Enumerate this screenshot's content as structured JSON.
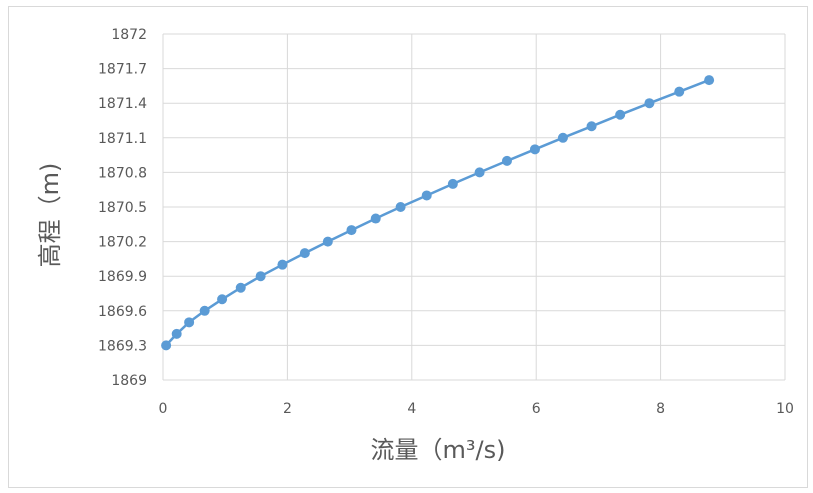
{
  "chart_data": {
    "type": "line",
    "title": "",
    "xlabel": "流量（m³/s)",
    "ylabel": "高程（m)",
    "xlim": [
      0,
      10
    ],
    "ylim": [
      1869,
      1872
    ],
    "x_ticks": [
      "0",
      "2",
      "4",
      "6",
      "8",
      "10"
    ],
    "y_ticks": [
      "1869",
      "1869.3",
      "1869.6",
      "1869.9",
      "1870.2",
      "1870.5",
      "1870.8",
      "1871.1",
      "1871.4",
      "1871.7",
      "1872"
    ],
    "grid": true,
    "legend": "none",
    "series": [
      {
        "color": "#5b9bd5",
        "points": [
          [
            0.05,
            1869.3
          ],
          [
            0.22,
            1869.4
          ],
          [
            0.42,
            1869.5
          ],
          [
            0.67,
            1869.6
          ],
          [
            0.95,
            1869.7
          ],
          [
            1.25,
            1869.8
          ],
          [
            1.57,
            1869.9
          ],
          [
            1.92,
            1870.0
          ],
          [
            2.28,
            1870.1
          ],
          [
            2.65,
            1870.2
          ],
          [
            3.03,
            1870.3
          ],
          [
            3.42,
            1870.4
          ],
          [
            3.82,
            1870.5
          ],
          [
            4.24,
            1870.6
          ],
          [
            4.66,
            1870.7
          ],
          [
            5.09,
            1870.8
          ],
          [
            5.53,
            1870.9
          ],
          [
            5.98,
            1871.0
          ],
          [
            6.43,
            1871.1
          ],
          [
            6.89,
            1871.2
          ],
          [
            7.35,
            1871.3
          ],
          [
            7.82,
            1871.4
          ],
          [
            8.3,
            1871.5
          ],
          [
            8.78,
            1871.6
          ]
        ]
      }
    ]
  }
}
